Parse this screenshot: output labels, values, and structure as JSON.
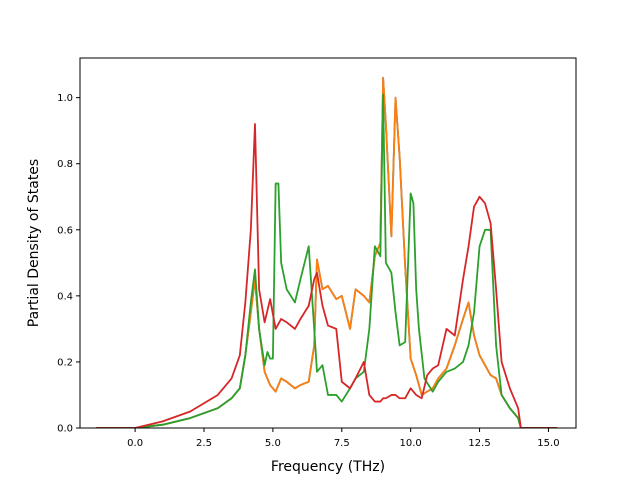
{
  "chart_data": {
    "type": "line",
    "title": "",
    "xlabel": "Frequency (THz)",
    "ylabel": "Partial Density of States",
    "xlim": [
      -2.0,
      16.0
    ],
    "ylim": [
      0.0,
      1.12
    ],
    "xticks": [
      0.0,
      2.5,
      5.0,
      7.5,
      10.0,
      12.5,
      15.0
    ],
    "xtick_labels": [
      "0.0",
      "2.5",
      "5.0",
      "7.5",
      "10.0",
      "12.5",
      "15.0"
    ],
    "yticks": [
      0.0,
      0.2,
      0.4,
      0.6,
      0.8,
      1.0
    ],
    "ytick_labels": [
      "0.0",
      "0.2",
      "0.4",
      "0.6",
      "0.8",
      "1.0"
    ],
    "grid": false,
    "legend": "none",
    "series": [
      {
        "color": "#1f77b4",
        "x": [
          -1.4,
          0.0,
          1.0,
          2.0,
          3.0,
          3.5,
          3.8,
          4.0,
          4.2,
          4.35,
          4.5,
          4.7,
          4.9,
          5.1,
          5.3,
          5.5,
          5.8,
          6.0,
          6.3,
          6.5,
          6.6,
          6.8,
          7.0,
          7.3,
          7.5,
          7.8,
          8.0,
          8.3,
          8.5,
          8.7,
          8.9,
          9.0,
          9.1,
          9.3,
          9.45,
          9.6,
          9.8,
          10.0,
          10.2,
          10.4,
          10.6,
          10.8,
          11.0,
          11.3,
          11.6,
          11.9,
          12.1,
          12.3,
          12.5,
          12.7,
          12.9,
          13.1,
          13.3,
          13.6,
          13.9,
          14.0,
          15.3
        ],
        "y": [
          0.0,
          0.0,
          0.01,
          0.03,
          0.06,
          0.09,
          0.12,
          0.22,
          0.35,
          0.45,
          0.3,
          0.17,
          0.13,
          0.11,
          0.15,
          0.14,
          0.12,
          0.13,
          0.14,
          0.25,
          0.51,
          0.42,
          0.43,
          0.39,
          0.4,
          0.3,
          0.42,
          0.4,
          0.38,
          0.52,
          0.56,
          1.06,
          0.92,
          0.58,
          1.0,
          0.82,
          0.49,
          0.21,
          0.16,
          0.1,
          0.11,
          0.12,
          0.15,
          0.18,
          0.25,
          0.33,
          0.38,
          0.28,
          0.22,
          0.19,
          0.16,
          0.15,
          0.1,
          0.06,
          0.03,
          0.0,
          0.0
        ]
      },
      {
        "color": "#ff7f0e",
        "x": [
          -1.4,
          0.0,
          1.0,
          2.0,
          3.0,
          3.5,
          3.8,
          4.0,
          4.2,
          4.35,
          4.5,
          4.7,
          4.9,
          5.1,
          5.3,
          5.5,
          5.8,
          6.0,
          6.3,
          6.5,
          6.6,
          6.8,
          7.0,
          7.3,
          7.5,
          7.8,
          8.0,
          8.3,
          8.5,
          8.7,
          8.9,
          9.0,
          9.1,
          9.3,
          9.45,
          9.6,
          9.8,
          10.0,
          10.2,
          10.4,
          10.6,
          10.8,
          11.0,
          11.3,
          11.6,
          11.9,
          12.1,
          12.3,
          12.5,
          12.7,
          12.9,
          13.1,
          13.3,
          13.6,
          13.9,
          14.0,
          15.3
        ],
        "y": [
          0.0,
          0.0,
          0.01,
          0.03,
          0.06,
          0.09,
          0.12,
          0.22,
          0.35,
          0.45,
          0.3,
          0.17,
          0.13,
          0.11,
          0.15,
          0.14,
          0.12,
          0.13,
          0.14,
          0.25,
          0.51,
          0.42,
          0.43,
          0.39,
          0.4,
          0.3,
          0.42,
          0.4,
          0.38,
          0.52,
          0.56,
          1.06,
          0.92,
          0.58,
          1.0,
          0.82,
          0.49,
          0.21,
          0.16,
          0.1,
          0.11,
          0.12,
          0.15,
          0.18,
          0.25,
          0.33,
          0.38,
          0.28,
          0.22,
          0.19,
          0.16,
          0.15,
          0.1,
          0.06,
          0.03,
          0.0,
          0.0
        ]
      },
      {
        "color": "#2ca02c",
        "x": [
          -1.4,
          0.0,
          1.0,
          2.0,
          3.0,
          3.5,
          3.8,
          4.0,
          4.2,
          4.35,
          4.5,
          4.7,
          4.8,
          4.9,
          5.0,
          5.1,
          5.2,
          5.3,
          5.5,
          5.8,
          6.0,
          6.3,
          6.5,
          6.6,
          6.8,
          7.0,
          7.3,
          7.5,
          7.8,
          8.0,
          8.3,
          8.5,
          8.7,
          8.9,
          9.0,
          9.1,
          9.3,
          9.45,
          9.6,
          9.8,
          10.0,
          10.1,
          10.2,
          10.3,
          10.5,
          10.8,
          11.0,
          11.3,
          11.6,
          11.9,
          12.1,
          12.3,
          12.5,
          12.7,
          12.9,
          13.1,
          13.3,
          13.6,
          13.9,
          14.0,
          15.3
        ],
        "y": [
          0.0,
          0.0,
          0.01,
          0.03,
          0.06,
          0.09,
          0.12,
          0.22,
          0.38,
          0.48,
          0.3,
          0.19,
          0.23,
          0.21,
          0.21,
          0.74,
          0.74,
          0.5,
          0.42,
          0.38,
          0.45,
          0.55,
          0.3,
          0.17,
          0.19,
          0.1,
          0.1,
          0.08,
          0.12,
          0.15,
          0.17,
          0.3,
          0.55,
          0.52,
          1.01,
          0.5,
          0.47,
          0.35,
          0.25,
          0.26,
          0.71,
          0.68,
          0.42,
          0.3,
          0.15,
          0.11,
          0.14,
          0.17,
          0.18,
          0.2,
          0.25,
          0.35,
          0.55,
          0.6,
          0.6,
          0.25,
          0.1,
          0.06,
          0.03,
          0.0,
          0.0
        ]
      },
      {
        "color": "#d62728",
        "x": [
          -1.4,
          0.0,
          1.0,
          2.0,
          3.0,
          3.5,
          3.8,
          4.0,
          4.2,
          4.35,
          4.5,
          4.7,
          4.9,
          5.1,
          5.3,
          5.5,
          5.8,
          6.0,
          6.3,
          6.5,
          6.6,
          6.8,
          7.0,
          7.3,
          7.5,
          7.8,
          8.0,
          8.3,
          8.5,
          8.7,
          8.9,
          9.0,
          9.1,
          9.3,
          9.45,
          9.6,
          9.8,
          10.0,
          10.2,
          10.4,
          10.6,
          10.8,
          11.0,
          11.3,
          11.6,
          11.9,
          12.1,
          12.3,
          12.5,
          12.7,
          12.9,
          13.1,
          13.3,
          13.6,
          13.9,
          14.0,
          15.3
        ],
        "y": [
          0.0,
          0.0,
          0.02,
          0.05,
          0.1,
          0.15,
          0.22,
          0.38,
          0.6,
          0.92,
          0.42,
          0.32,
          0.39,
          0.3,
          0.33,
          0.32,
          0.3,
          0.33,
          0.37,
          0.45,
          0.47,
          0.37,
          0.31,
          0.3,
          0.14,
          0.12,
          0.15,
          0.2,
          0.1,
          0.08,
          0.08,
          0.09,
          0.09,
          0.1,
          0.1,
          0.09,
          0.09,
          0.12,
          0.1,
          0.09,
          0.16,
          0.18,
          0.19,
          0.3,
          0.28,
          0.45,
          0.55,
          0.67,
          0.7,
          0.68,
          0.62,
          0.42,
          0.2,
          0.12,
          0.06,
          0.0,
          0.0
        ]
      }
    ]
  }
}
